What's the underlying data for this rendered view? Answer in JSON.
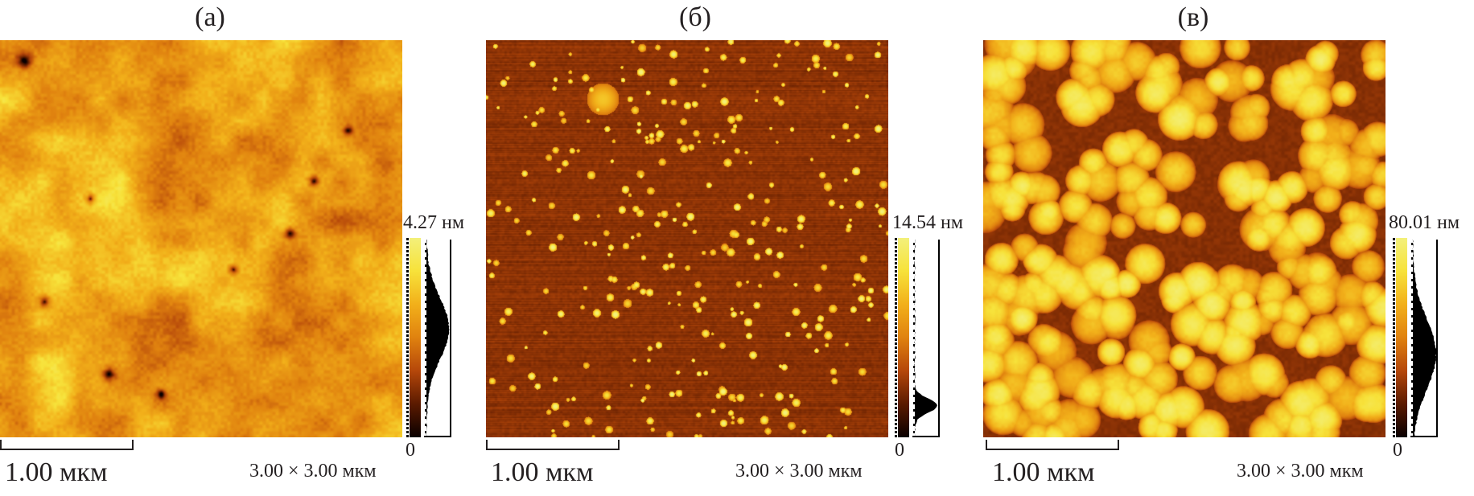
{
  "figure": {
    "panels": [
      {
        "label": "(а)",
        "max_height": "4.27 нм",
        "min_height": "0",
        "scale_bar": "1.00 мкм",
        "scan_size": "3.00 × 3.00 мкм",
        "texture": "smooth-mottled",
        "histogram": "broad-centered"
      },
      {
        "label": "(б)",
        "max_height": "14.54 нм",
        "min_height": "0",
        "scale_bar": "1.00 мкм",
        "scan_size": "3.00 × 3.00 мкм",
        "texture": "sparse-dots",
        "histogram": "narrow-low"
      },
      {
        "label": "(в)",
        "max_height": "80.01 нм",
        "min_height": "0",
        "scale_bar": "1.00 мкм",
        "scan_size": "3.00 × 3.00 мкм",
        "texture": "dense-grains",
        "histogram": "broad-centered"
      }
    ],
    "colormap": [
      "#0a0000",
      "#5a1a00",
      "#b5470a",
      "#e0820f",
      "#f2b01a",
      "#f7e23a",
      "#f3f07a"
    ]
  }
}
